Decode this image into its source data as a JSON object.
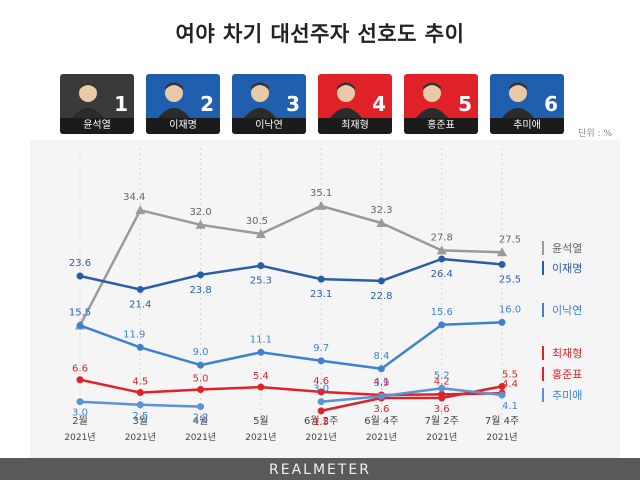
{
  "title": "여야 차기 대선주자 선호도 추이",
  "unit_label": "단위 : %",
  "footer_brand": "REALMETER",
  "candidates": [
    {
      "num": "1",
      "name": "윤석열",
      "bg": "#3a3a3a"
    },
    {
      "num": "2",
      "name": "이재명",
      "bg": "#1f5fae"
    },
    {
      "num": "3",
      "name": "이낙연",
      "bg": "#1f5fae"
    },
    {
      "num": "4",
      "name": "최재형",
      "bg": "#e02128"
    },
    {
      "num": "5",
      "name": "홍준표",
      "bg": "#e02128"
    },
    {
      "num": "6",
      "name": "추미애",
      "bg": "#1f5fae"
    }
  ],
  "chart_data": {
    "type": "line",
    "title": "여야 차기 대선주자 선호도 추이",
    "x": [
      {
        "line1": "2월",
        "line2": "2021년"
      },
      {
        "line1": "3월",
        "line2": "2021년"
      },
      {
        "line1": "4월",
        "line2": "2021년"
      },
      {
        "line1": "5월",
        "line2": "2021년"
      },
      {
        "line1": "6월 2주",
        "line2": "2021년"
      },
      {
        "line1": "6월 4주",
        "line2": "2021년"
      },
      {
        "line1": "7월 2주",
        "line2": "2021년"
      },
      {
        "line1": "7월 4주",
        "line2": "2021년"
      }
    ],
    "ylim": [
      0,
      40
    ],
    "grid": false,
    "legend_position": "right",
    "series": [
      {
        "name": "윤석열",
        "color": "#9a9a9a",
        "label_color": "#666666",
        "values": [
          15.5,
          34.4,
          32.0,
          30.5,
          35.1,
          32.3,
          27.8,
          27.5
        ]
      },
      {
        "name": "이재명",
        "color": "#2a5da8",
        "label_color": "#2a5da8",
        "values": [
          23.6,
          21.4,
          23.8,
          25.3,
          23.1,
          22.8,
          26.4,
          25.5
        ]
      },
      {
        "name": "이낙연",
        "color": "#3e82cf",
        "label_color": "#3e82cf",
        "values": [
          15.5,
          11.9,
          9.0,
          11.1,
          9.7,
          8.4,
          15.6,
          16.0
        ]
      },
      {
        "name": "최재형",
        "color": "#d8252b",
        "label_color": "#d8252b",
        "values": [
          null,
          null,
          null,
          null,
          1.5,
          3.6,
          3.6,
          5.5
        ]
      },
      {
        "name": "홍준표",
        "color": "#e02128",
        "label_color": "#d8252b",
        "values": [
          6.6,
          4.5,
          5.0,
          5.4,
          4.6,
          4.1,
          4.2,
          4.4
        ]
      },
      {
        "name": "추미애",
        "color": "#5a93d6",
        "label_color": "#3e82cf",
        "values": [
          3.0,
          2.5,
          2.2,
          null,
          3.0,
          3.9,
          5.2,
          4.1
        ]
      }
    ]
  }
}
